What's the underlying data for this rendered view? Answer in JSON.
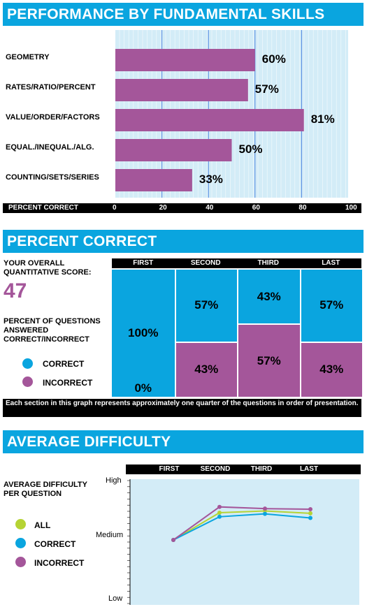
{
  "section1": {
    "title": "PERFORMANCE BY FUNDAMENTAL SKILLS",
    "footer_label": "PERCENT CORRECT",
    "ticks": [
      "0",
      "20",
      "40",
      "60",
      "80",
      "100"
    ]
  },
  "section2": {
    "title": "PERCENT CORRECT",
    "score_label": "YOUR OVERALL QUANTITATIVE SCORE:",
    "score": "47",
    "answered_label": "PERCENT OF QUESTIONS ANSWERED CORRECT/INCORRECT",
    "legend": [
      {
        "label": "CORRECT",
        "color": "#0aa5df"
      },
      {
        "label": "INCORRECT",
        "color": "#a4569a"
      }
    ],
    "quarters": [
      "FIRST",
      "SECOND",
      "THIRD",
      "LAST"
    ],
    "footnote": "Each section in this graph represents approximately one quarter of the questions in order of presentation."
  },
  "section3": {
    "title": "AVERAGE DIFFICULTY",
    "side_label": "AVERAGE DIFFICULTY PER QUESTION",
    "legend": [
      {
        "label": "ALL",
        "color": "#b5d334"
      },
      {
        "label": "CORRECT",
        "color": "#0aa5df"
      },
      {
        "label": "INCORRECT",
        "color": "#a4569a"
      }
    ],
    "quarters": [
      "FIRST",
      "SECOND",
      "THIRD",
      "LAST"
    ],
    "y_levels": [
      "High",
      "Medium",
      "Low"
    ]
  },
  "colors": {
    "accent": "#0aa5df",
    "bar": "#a4569a",
    "panel_bg": "#d3ecf7",
    "all_line": "#b5d334"
  },
  "chart_data": [
    {
      "type": "bar",
      "orientation": "horizontal",
      "title": "PERFORMANCE BY FUNDAMENTAL SKILLS",
      "xlabel": "PERCENT CORRECT",
      "xlim": [
        0,
        100
      ],
      "categories": [
        "GEOMETRY",
        "RATES/RATIO/PERCENT",
        "VALUE/ORDER/FACTORS",
        "EQUAL./INEQUAL./ALG.",
        "COUNTING/SETS/SERIES"
      ],
      "values": [
        60,
        57,
        81,
        50,
        33
      ],
      "data_labels": [
        "60%",
        "57%",
        "81%",
        "50%",
        "33%"
      ]
    },
    {
      "type": "bar",
      "stacked": true,
      "title": "PERCENT CORRECT",
      "categories": [
        "FIRST",
        "SECOND",
        "THIRD",
        "LAST"
      ],
      "series": [
        {
          "name": "CORRECT",
          "values": [
            100,
            57,
            43,
            57
          ],
          "labels": [
            "100%",
            "57%",
            "43%",
            "57%"
          ]
        },
        {
          "name": "INCORRECT",
          "values": [
            0,
            43,
            57,
            43
          ],
          "labels": [
            "0%",
            "43%",
            "57%",
            "43%"
          ]
        }
      ]
    },
    {
      "type": "line",
      "title": "AVERAGE DIFFICULTY",
      "categories": [
        "FIRST",
        "SECOND",
        "THIRD",
        "LAST"
      ],
      "y_scale": {
        "Low": 0,
        "Medium": 1,
        "High": 2
      },
      "ylim": [
        0,
        2
      ],
      "series": [
        {
          "name": "ALL",
          "values": [
            1.0,
            1.47,
            1.5,
            1.46
          ]
        },
        {
          "name": "CORRECT",
          "values": [
            1.0,
            1.4,
            1.45,
            1.38
          ]
        },
        {
          "name": "INCORRECT",
          "values": [
            1.0,
            1.57,
            1.54,
            1.53
          ]
        }
      ]
    }
  ]
}
